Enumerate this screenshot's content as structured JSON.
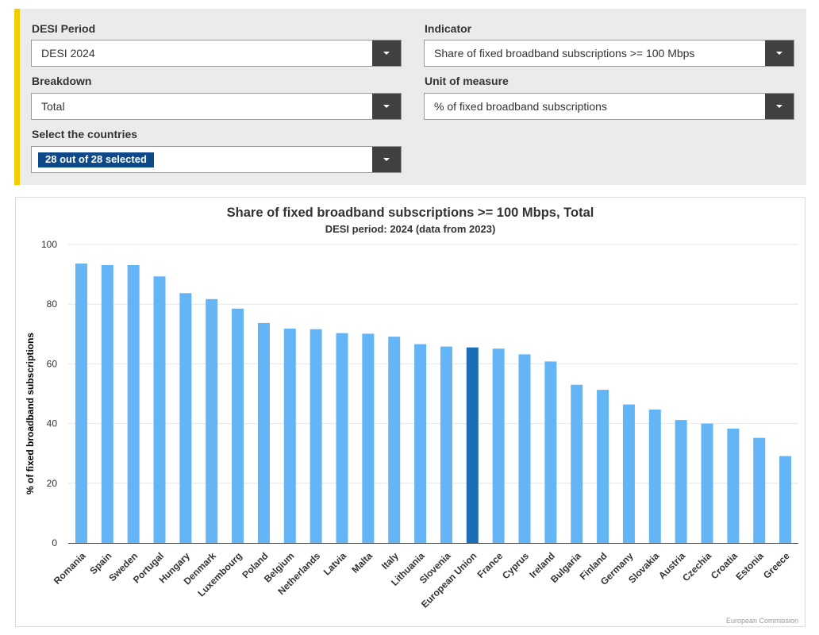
{
  "filters": {
    "period": {
      "label": "DESI Period",
      "value": "DESI 2024"
    },
    "indicator": {
      "label": "Indicator",
      "value": "Share of fixed broadband subscriptions >= 100 Mbps"
    },
    "breakdown": {
      "label": "Breakdown",
      "value": "Total"
    },
    "unit": {
      "label": "Unit of measure",
      "value": "% of fixed broadband subscriptions"
    },
    "countries": {
      "label": "Select the countries",
      "value": "28 out of 28 selected"
    }
  },
  "colors": {
    "bar": "#64b5f6",
    "highlight": "#1b6db5",
    "accent": "#f2cc00"
  },
  "credits": "European Commission",
  "chart_data": {
    "type": "bar",
    "title": "Share of fixed broadband subscriptions >= 100 Mbps, Total",
    "subtitle": "DESI period: 2024 (data from 2023)",
    "xlabel": "",
    "ylabel": "% of fixed broadband subscriptions",
    "ylim": [
      0,
      100
    ],
    "yticks": [
      0,
      20,
      40,
      60,
      80,
      100
    ],
    "grid": true,
    "highlight": "European Union",
    "categories": [
      "Romania",
      "Spain",
      "Sweden",
      "Portugal",
      "Hungary",
      "Denmark",
      "Luxembourg",
      "Poland",
      "Belgium",
      "Netherlands",
      "Latvia",
      "Malta",
      "Italy",
      "Lithuania",
      "Slovenia",
      "European Union",
      "France",
      "Cyprus",
      "Ireland",
      "Bulgaria",
      "Finland",
      "Germany",
      "Slovakia",
      "Austria",
      "Czechia",
      "Croatia",
      "Estonia",
      "Greece"
    ],
    "values": [
      93.6,
      93.1,
      93.1,
      89.3,
      83.7,
      81.7,
      78.5,
      73.7,
      71.8,
      71.6,
      70.3,
      70.1,
      69.1,
      66.6,
      65.8,
      65.5,
      65.1,
      63.2,
      60.8,
      53.0,
      51.3,
      46.4,
      44.7,
      41.2,
      40.0,
      38.3,
      35.2,
      29.1
    ]
  }
}
